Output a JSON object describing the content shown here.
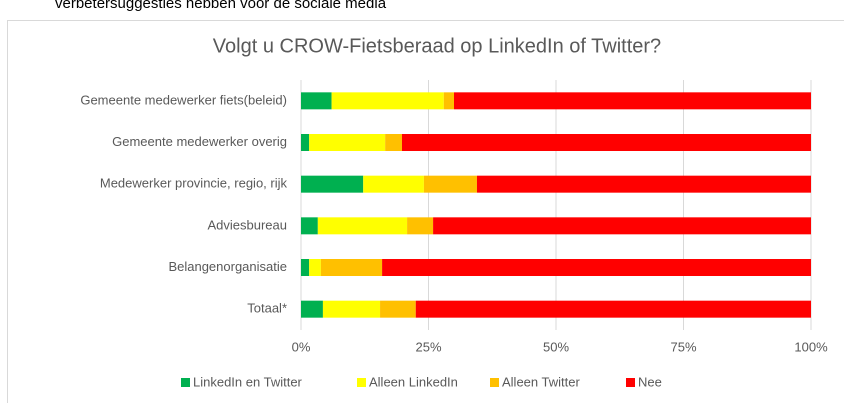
{
  "header": {
    "text": "verbetersuggesties hebben voor de sociale media"
  },
  "chart_data": {
    "type": "stacked-bar-horizontal",
    "title": "Volgt u CROW-Fietsberaad op LinkedIn of Twitter?",
    "categories": [
      "Gemeente medewerker fiets(beleid)",
      "Gemeente medewerker overig",
      "Medewerker provincie, regio, rijk",
      "Adviesbureau",
      "Belangenorganisatie",
      "Totaal*"
    ],
    "series": [
      {
        "name": "LinkedIn en Twitter",
        "color": "#00b050",
        "values": [
          6,
          1.6,
          12.2,
          3.3,
          1.6,
          4.3
        ]
      },
      {
        "name": "Alleen LinkedIn",
        "color": "#ffff00",
        "values": [
          22,
          14.9,
          11.9,
          17.5,
          2.3,
          11.2
        ]
      },
      {
        "name": "Alleen Twitter",
        "color": "#ffc000",
        "values": [
          2,
          3.3,
          10.4,
          5.1,
          12,
          7
        ]
      },
      {
        "name": "Nee",
        "color": "#ff0000",
        "values": [
          70,
          80.2,
          65.5,
          74.1,
          84.1,
          77.5
        ]
      }
    ],
    "xlim": [
      0,
      100
    ],
    "xticks": [
      {
        "value": 0,
        "label": "0%"
      },
      {
        "value": 25,
        "label": "25%"
      },
      {
        "value": 50,
        "label": "50%"
      },
      {
        "value": 75,
        "label": "75%"
      },
      {
        "value": 100,
        "label": "100%"
      }
    ],
    "grid": true,
    "legend": "bottom"
  }
}
